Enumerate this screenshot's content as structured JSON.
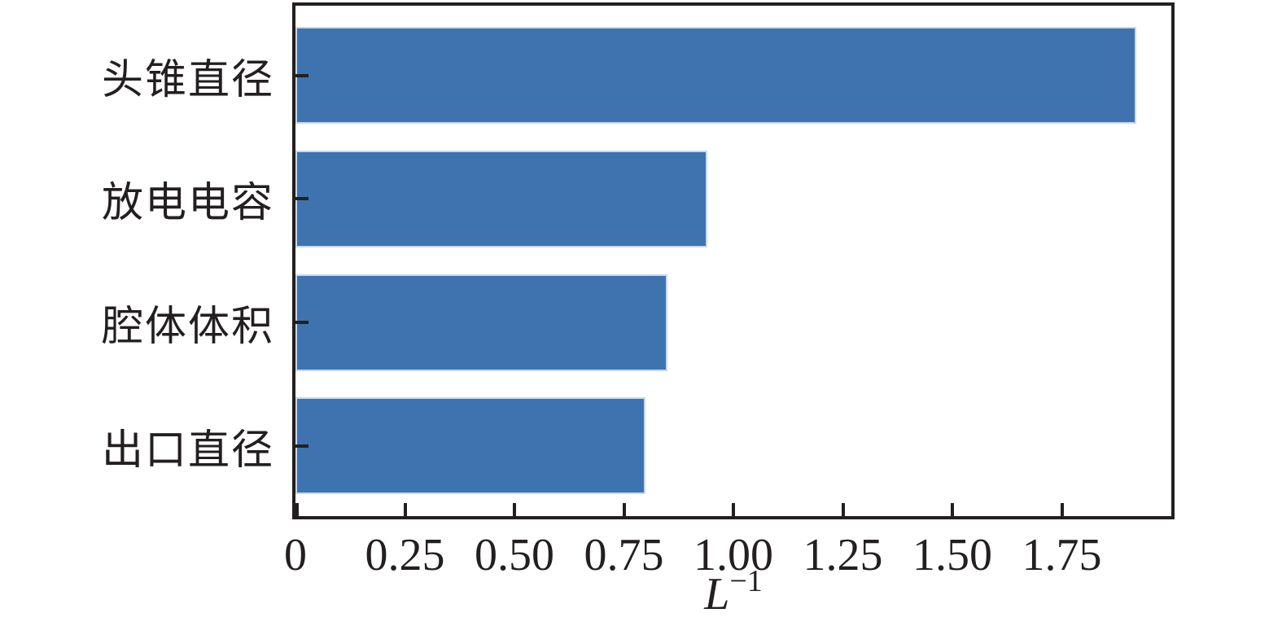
{
  "chart_data": {
    "type": "bar",
    "orientation": "horizontal",
    "title": "",
    "categories": [
      "头锥直径",
      "放电电容",
      "腔体体积",
      "出口直径"
    ],
    "values": [
      1.92,
      0.94,
      0.85,
      0.8
    ],
    "xlim": [
      0,
      2.0
    ],
    "xticks": [
      0,
      0.25,
      0.5,
      0.75,
      1.0,
      1.25,
      1.5,
      1.75
    ],
    "xtick_labels": [
      "0",
      "0.25",
      "0.50",
      "0.75",
      "1.00",
      "1.25",
      "1.50",
      "1.75"
    ],
    "xlabel_base": "L",
    "xlabel_exponent": "−1",
    "bar_color": "#3E73AF",
    "bar_edge_color": "#C9D8EB",
    "axis_color": "#231F20",
    "grid": false,
    "tick_direction": "in"
  }
}
